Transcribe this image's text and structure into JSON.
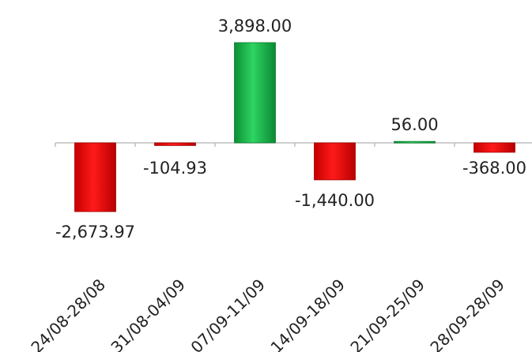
{
  "chart_data": {
    "type": "bar",
    "title": "",
    "xlabel": "",
    "ylabel": "",
    "categories": [
      "24/08-28/08",
      "31/08-04/09",
      "07/09-11/09",
      "14/09-18/09",
      "21/09-25/09",
      "28/09-28/09"
    ],
    "values": [
      -2673.97,
      -104.93,
      3898.0,
      -1440.0,
      56.0,
      -368.0
    ],
    "value_labels": [
      "-2,673.97",
      "-104.93",
      "3,898.00",
      "-1,440.00",
      "56.00",
      "-368.00"
    ],
    "ylim": [
      -2673.97,
      3898.0
    ],
    "grid": false,
    "legend": "none",
    "colors": {
      "positive": "#1db954",
      "negative": "#e8141a",
      "axis": "#bfbfbf"
    }
  }
}
